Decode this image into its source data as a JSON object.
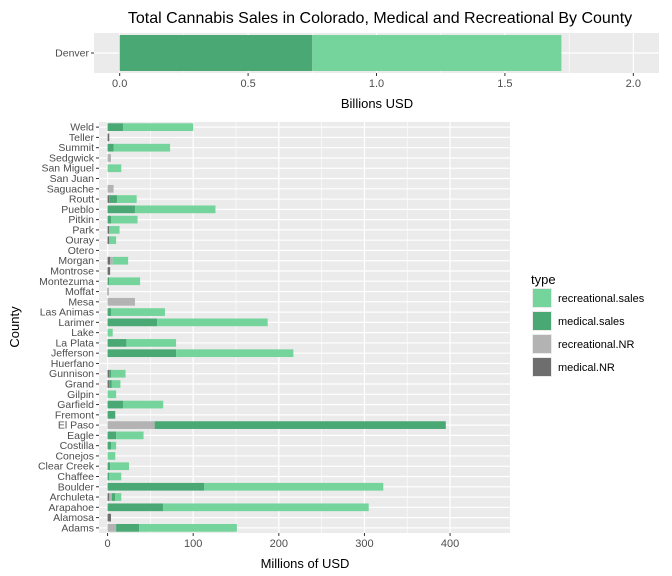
{
  "title": "Total Cannabis Sales in Colorado, Medical and Recreational By County",
  "colors": {
    "recreational.sales": "#74d49b",
    "medical.sales": "#49a874",
    "recreational.NR": "#b3b3b3",
    "medical.NR": "#6e6e6e",
    "panel_bg": "#ebebeb",
    "grid": "#ffffff"
  },
  "legend": {
    "title": "type",
    "position": "right",
    "items": [
      "recreational.sales",
      "medical.sales",
      "recreational.NR",
      "medical.NR"
    ]
  },
  "chart_data": [
    {
      "type": "bar",
      "orientation": "horizontal",
      "stacked": true,
      "categories": [
        "Denver"
      ],
      "xlabel": "Billions USD",
      "ylabel": "",
      "xlim": [
        -0.1,
        2.1
      ],
      "xticks": [
        0.0,
        0.5,
        1.0,
        1.5,
        2.0
      ],
      "xtick_labels": [
        "0.0",
        "0.5",
        "1.0",
        "1.5",
        "2.0"
      ],
      "grid": true,
      "series": [
        {
          "name": "medical.NR",
          "values": [
            0
          ]
        },
        {
          "name": "recreational.NR",
          "values": [
            0
          ]
        },
        {
          "name": "medical.sales",
          "values": [
            0.75
          ]
        },
        {
          "name": "recreational.sales",
          "values": [
            0.97
          ]
        }
      ]
    },
    {
      "type": "bar",
      "orientation": "horizontal",
      "stacked": true,
      "categories": [
        "Weld",
        "Teller",
        "Summit",
        "Sedgwick",
        "San Miguel",
        "San Juan",
        "Saguache",
        "Routt",
        "Pueblo",
        "Pitkin",
        "Park",
        "Ouray",
        "Otero",
        "Morgan",
        "Montrose",
        "Montezuma",
        "Moffat",
        "Mesa",
        "Las Animas",
        "Larimer",
        "Lake",
        "La Plata",
        "Jefferson",
        "Huerfano",
        "Gunnison",
        "Grand",
        "Gilpin",
        "Garfield",
        "Fremont",
        "El Paso",
        "Eagle",
        "Costilla",
        "Conejos",
        "Clear Creek",
        "Chaffee",
        "Boulder",
        "Archuleta",
        "Arapahoe",
        "Alamosa",
        "Adams"
      ],
      "xlabel": "Millions of USD",
      "ylabel": "County",
      "xlim": [
        -10,
        470
      ],
      "xticks": [
        0,
        100,
        200,
        300,
        400
      ],
      "xtick_labels": [
        "0",
        "100",
        "200",
        "300",
        "400"
      ],
      "grid": true,
      "series": [
        {
          "name": "medical.NR",
          "values": [
            0,
            2,
            0,
            0,
            0,
            0,
            0,
            2,
            0,
            0,
            2,
            2,
            0,
            3,
            3,
            0,
            1,
            0,
            0,
            0,
            0,
            0,
            0,
            0,
            2,
            2,
            0,
            0,
            0,
            0,
            0,
            0,
            0,
            0,
            0,
            0,
            2,
            0,
            4,
            0
          ]
        },
        {
          "name": "recreational.NR",
          "values": [
            0,
            0,
            0,
            4,
            0,
            0,
            7,
            0,
            0,
            0,
            0,
            0,
            0,
            3,
            0,
            0,
            0,
            32,
            0,
            0,
            0,
            0,
            0,
            0,
            0,
            0,
            0,
            0,
            0,
            55,
            0,
            0,
            0,
            0,
            0,
            0,
            3,
            0,
            0,
            10
          ]
        },
        {
          "name": "medical.sales",
          "values": [
            18,
            0,
            7,
            0,
            0,
            0,
            0,
            9,
            32,
            4,
            0,
            0,
            0,
            0,
            0,
            2,
            0,
            0,
            4,
            58,
            0,
            22,
            80,
            0,
            2,
            3,
            0,
            18,
            9,
            340,
            10,
            4,
            0,
            3,
            2,
            113,
            4,
            65,
            0,
            27
          ]
        },
        {
          "name": "recreational.sales",
          "values": [
            82,
            0,
            66,
            0,
            16,
            0,
            0,
            23,
            94,
            31,
            12,
            8,
            0,
            18,
            0,
            36,
            0,
            0,
            63,
            129,
            6,
            58,
            137,
            0,
            17,
            10,
            10,
            47,
            0,
            0,
            32,
            6,
            9,
            22,
            14,
            209,
            7,
            240,
            0,
            114
          ]
        }
      ]
    }
  ]
}
